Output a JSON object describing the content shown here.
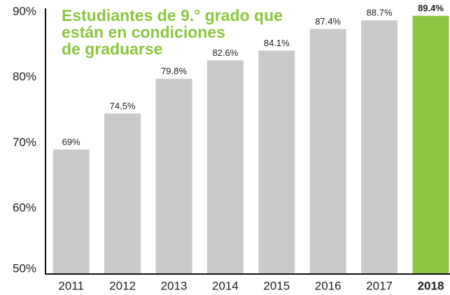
{
  "chart_data": {
    "type": "bar",
    "title": [
      "Estudiantes de 9.° grado que",
      "están en condiciones",
      "de graduarse"
    ],
    "categories": [
      "2011",
      "2012",
      "2013",
      "2014",
      "2015",
      "2016",
      "2017",
      "2018"
    ],
    "values": [
      69,
      74.5,
      79.8,
      82.6,
      84.1,
      87.4,
      88.7,
      89.4
    ],
    "value_labels": [
      "69%",
      "74.5%",
      "79.8%",
      "82.6%",
      "84.1%",
      "87.4%",
      "88.7%",
      "89.4%"
    ],
    "colors": [
      "#cccac9",
      "#cccac9",
      "#cccac9",
      "#cccac9",
      "#cccac9",
      "#cccac9",
      "#cccac9",
      "#8dc63f"
    ],
    "title_color": "#8dc63f",
    "ylim": [
      50,
      90
    ],
    "yticks": [
      {
        "value": 50,
        "label": "50%"
      },
      {
        "value": 60,
        "label": "60%"
      },
      {
        "value": 70,
        "label": "70%"
      },
      {
        "value": 80,
        "label": "80%"
      },
      {
        "value": 90,
        "label": "90%"
      }
    ],
    "grid": false
  }
}
